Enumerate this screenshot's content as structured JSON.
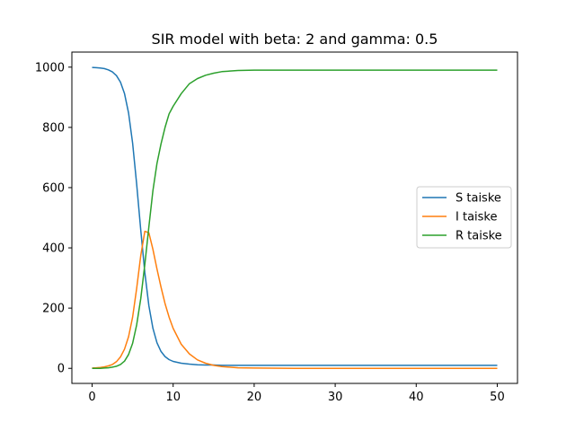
{
  "chart_data": {
    "type": "line",
    "title": "SIR model with beta: 2  and gamma: 0.5",
    "xlabel": "",
    "ylabel": "",
    "xlim": [
      -2.5,
      52.5
    ],
    "ylim": [
      -50,
      1050
    ],
    "xticks": [
      0,
      10,
      20,
      30,
      40,
      50
    ],
    "yticks": [
      0,
      200,
      400,
      600,
      800,
      1000
    ],
    "grid": false,
    "legend_position": "center-right",
    "series": [
      {
        "name": "S taiske",
        "color": "#1f77b4",
        "x": [
          0,
          0.5,
          1,
          1.5,
          2,
          2.5,
          3,
          3.5,
          4,
          4.5,
          5,
          5.5,
          6,
          6.5,
          7,
          7.5,
          8,
          8.5,
          9,
          9.5,
          10,
          11,
          12,
          13,
          14,
          15,
          16,
          18,
          20,
          25,
          30,
          35,
          40,
          45,
          50
        ],
        "values": [
          999,
          998,
          997,
          995,
          991,
          984,
          972,
          950,
          912,
          848,
          748,
          612,
          458,
          318,
          208,
          133,
          85,
          56,
          39,
          29,
          23,
          17,
          14,
          12,
          11,
          11,
          10,
          10,
          10,
          10,
          10,
          10,
          10,
          10,
          10
        ]
      },
      {
        "name": "I taiske",
        "color": "#ff7f0e",
        "x": [
          0,
          0.5,
          1,
          1.5,
          2,
          2.5,
          3,
          3.5,
          4,
          4.5,
          5,
          5.5,
          6,
          6.5,
          7,
          7.5,
          8,
          8.5,
          9,
          9.5,
          10,
          11,
          12,
          13,
          14,
          15,
          16,
          18,
          20,
          25,
          30,
          35,
          40,
          45,
          50
        ],
        "values": [
          1,
          2,
          3,
          5,
          8,
          13,
          22,
          38,
          64,
          105,
          170,
          265,
          375,
          455,
          450,
          395,
          330,
          270,
          215,
          170,
          133,
          80,
          48,
          28,
          17,
          10,
          6,
          2,
          1,
          0,
          0,
          0,
          0,
          0,
          0
        ]
      },
      {
        "name": "R taiske",
        "color": "#2ca02c",
        "x": [
          0,
          0.5,
          1,
          1.5,
          2,
          2.5,
          3,
          3.5,
          4,
          4.5,
          5,
          5.5,
          6,
          6.5,
          7,
          7.5,
          8,
          8.5,
          9,
          9.5,
          10,
          11,
          12,
          13,
          14,
          15,
          16,
          18,
          20,
          25,
          30,
          35,
          40,
          45,
          50
        ],
        "values": [
          0,
          0,
          0,
          1,
          2,
          4,
          7,
          13,
          24,
          46,
          83,
          144,
          232,
          345,
          470,
          590,
          680,
          745,
          800,
          845,
          870,
          912,
          945,
          962,
          973,
          980,
          985,
          989,
          990,
          990,
          990,
          990,
          990,
          990,
          990
        ]
      }
    ]
  }
}
